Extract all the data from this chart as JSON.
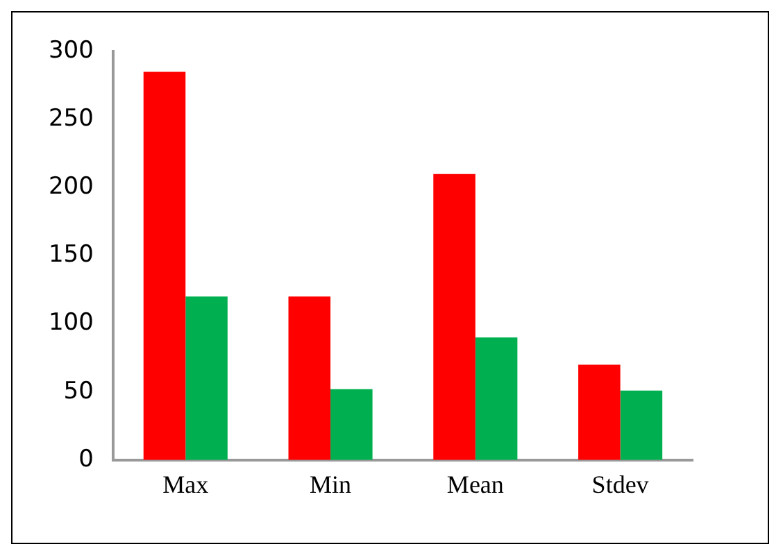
{
  "chart_data": {
    "type": "bar",
    "categories": [
      "Max",
      "Min",
      "Mean",
      "Stdev"
    ],
    "series": [
      {
        "color": "#ff0000",
        "values": [
          285,
          120,
          210,
          70
        ]
      },
      {
        "color": "#00b050",
        "values": [
          120,
          52,
          90,
          51
        ]
      }
    ],
    "ylim": [
      0,
      300
    ],
    "yticks": [
      0,
      50,
      100,
      150,
      200,
      250,
      300
    ],
    "grid": false,
    "legend": false
  }
}
